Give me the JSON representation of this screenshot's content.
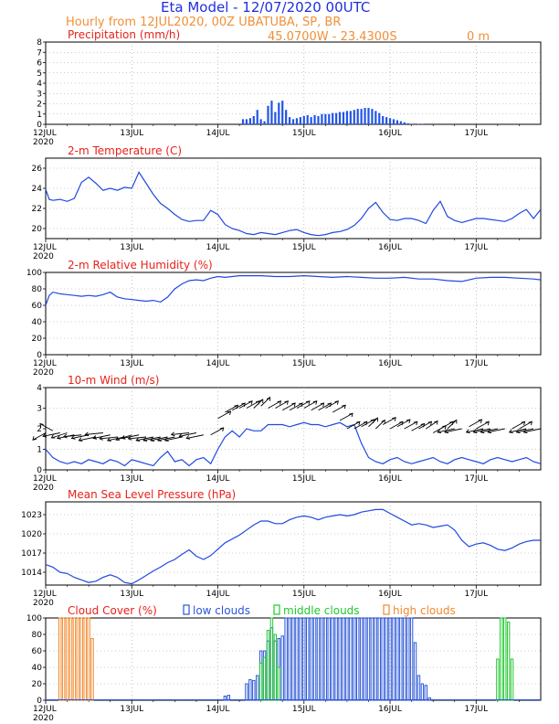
{
  "header": {
    "title": "Eta Model - 12/07/2020 00UTC",
    "subtitle": "Hourly from 12JUL2020, 00Z  UBATUBA, SP, BR",
    "coords": "45.0700W - 23.4300S",
    "elevation": "0  m"
  },
  "xaxis": {
    "labels": [
      "12JUL",
      "13JUL",
      "14JUL",
      "15JUL",
      "16JUL",
      "17JUL"
    ],
    "year": "2020"
  },
  "colors": {
    "title_red": "#e8211a",
    "header_blue": "#1f2ee0",
    "header_orange": "#f09038",
    "line_blue": "#1f49e0",
    "bar_blue": "#2255e8",
    "low_clouds": "#2a56d8",
    "middle_clouds": "#22c830",
    "high_clouds": "#f08a2e"
  },
  "chart_data": [
    {
      "type": "bar",
      "title": "Precipitation (mm/h)",
      "ylim": [
        0,
        8
      ],
      "yticks": [
        "0",
        "1",
        "2",
        "3",
        "4",
        "5",
        "6",
        "7",
        "8"
      ],
      "ytick_values": [
        0,
        1,
        2,
        3,
        4,
        5,
        6,
        7,
        8
      ],
      "hours": [
        55,
        56,
        57,
        58,
        59,
        60,
        61,
        62,
        63,
        64,
        65,
        66,
        67,
        68,
        69,
        70,
        71,
        72,
        73,
        74,
        75,
        76,
        77,
        78,
        79,
        80,
        81,
        82,
        83,
        84,
        85,
        86,
        87,
        88,
        89,
        90,
        91,
        92,
        93,
        94,
        95,
        96,
        97,
        98,
        99,
        100,
        101,
        102,
        104,
        105
      ],
      "values": [
        0.5,
        0.5,
        0.6,
        0.8,
        1.4,
        0.5,
        0.3,
        1.8,
        2.3,
        1.2,
        2.1,
        2.3,
        1.4,
        0.7,
        0.5,
        0.6,
        0.7,
        0.8,
        0.9,
        0.7,
        0.9,
        0.8,
        1.0,
        1.0,
        1.0,
        1.1,
        1.1,
        1.2,
        1.2,
        1.3,
        1.3,
        1.4,
        1.5,
        1.5,
        1.6,
        1.6,
        1.5,
        1.3,
        1.1,
        0.8,
        0.7,
        0.6,
        0.5,
        0.4,
        0.3,
        0.2,
        0.1,
        0.05,
        0.05,
        0.05
      ]
    },
    {
      "type": "line",
      "title": "2-m Temperature (C)",
      "ylim": [
        19,
        27
      ],
      "yticks": [
        "20",
        "22",
        "24",
        "26"
      ],
      "ytick_values": [
        20,
        22,
        24,
        26
      ],
      "hours": [
        0,
        1,
        2,
        4,
        6,
        8,
        10,
        12,
        14,
        16,
        18,
        20,
        22,
        24,
        26,
        28,
        30,
        32,
        34,
        36,
        38,
        40,
        42,
        44,
        46,
        48,
        50,
        52,
        54,
        56,
        58,
        60,
        62,
        64,
        66,
        68,
        70,
        72,
        74,
        76,
        78,
        80,
        82,
        84,
        86,
        88,
        90,
        92,
        94,
        96,
        98,
        100,
        102,
        104,
        106,
        108,
        110,
        112,
        114,
        116,
        118,
        120,
        122,
        124,
        126,
        128,
        130,
        132,
        134,
        136,
        138
      ],
      "values": [
        23.9,
        22.9,
        22.8,
        22.9,
        22.7,
        23.0,
        24.6,
        25.1,
        24.5,
        23.8,
        24.0,
        23.8,
        24.1,
        24.0,
        25.6,
        24.5,
        23.4,
        22.5,
        22.0,
        21.4,
        20.9,
        20.7,
        20.8,
        20.8,
        21.8,
        21.4,
        20.4,
        20.0,
        19.8,
        19.5,
        19.4,
        19.6,
        19.5,
        19.4,
        19.6,
        19.8,
        19.9,
        19.6,
        19.4,
        19.3,
        19.4,
        19.6,
        19.7,
        19.9,
        20.3,
        21.0,
        22.0,
        22.6,
        21.6,
        20.9,
        20.8,
        21.0,
        21.0,
        20.8,
        20.5,
        21.8,
        22.7,
        21.2,
        20.8,
        20.6,
        20.8,
        21.0,
        21.0,
        20.9,
        20.8,
        20.7,
        21.0,
        21.5,
        21.9,
        21.0,
        21.9
      ],
      "values_note": "hourly series over the 5.5 day span"
    },
    {
      "type": "line",
      "title": "2-m Relative Humidity (%)",
      "ylim": [
        0,
        100
      ],
      "yticks": [
        "0",
        "20",
        "40",
        "60",
        "80",
        "100"
      ],
      "ytick_values": [
        0,
        20,
        40,
        60,
        80,
        100
      ],
      "hours": [
        0,
        1,
        2,
        4,
        6,
        8,
        10,
        12,
        14,
        16,
        18,
        20,
        22,
        24,
        26,
        28,
        30,
        32,
        34,
        36,
        38,
        40,
        42,
        44,
        46,
        48,
        50,
        52,
        54,
        56,
        60,
        64,
        68,
        72,
        76,
        80,
        84,
        88,
        92,
        96,
        100,
        104,
        108,
        112,
        116,
        120,
        124,
        128,
        132,
        136,
        138
      ],
      "values": [
        60,
        72,
        76,
        74,
        73,
        72,
        71,
        72,
        71,
        73,
        76,
        70,
        68,
        67,
        66,
        65,
        66,
        64,
        70,
        80,
        86,
        90,
        91,
        90,
        93,
        95,
        94,
        95,
        96,
        96,
        96,
        95,
        95,
        96,
        95,
        94,
        95,
        94,
        93,
        93,
        94,
        92,
        92,
        90,
        89,
        93,
        94,
        94,
        93,
        92,
        91
      ]
    },
    {
      "type": "line",
      "title": "10-m Wind (m/s)",
      "ylim": [
        0,
        4
      ],
      "yticks": [
        "0",
        "1",
        "2",
        "3",
        "4"
      ],
      "ytick_values": [
        0,
        1,
        2,
        3,
        4
      ],
      "hours": [
        0,
        1,
        2,
        4,
        6,
        8,
        10,
        12,
        14,
        16,
        18,
        20,
        22,
        24,
        26,
        28,
        30,
        32,
        34,
        36,
        38,
        40,
        42,
        44,
        46,
        48,
        50,
        52,
        54,
        56,
        58,
        60,
        62,
        64,
        66,
        68,
        70,
        72,
        74,
        76,
        78,
        80,
        82,
        84,
        86,
        88,
        90,
        92,
        94,
        96,
        98,
        100,
        102,
        104,
        106,
        108,
        110,
        112,
        114,
        116,
        118,
        120,
        122,
        124,
        126,
        128,
        130,
        132,
        134,
        136,
        138
      ],
      "values": [
        1.0,
        0.8,
        0.6,
        0.4,
        0.3,
        0.4,
        0.3,
        0.5,
        0.4,
        0.3,
        0.5,
        0.4,
        0.2,
        0.5,
        0.4,
        0.3,
        0.2,
        0.6,
        0.9,
        0.4,
        0.5,
        0.2,
        0.5,
        0.6,
        0.3,
        1.0,
        1.6,
        1.9,
        1.6,
        2.0,
        1.9,
        1.9,
        2.2,
        2.2,
        2.2,
        2.1,
        2.2,
        2.3,
        2.2,
        2.2,
        2.1,
        2.2,
        2.3,
        2.1,
        2.2,
        1.3,
        0.6,
        0.4,
        0.3,
        0.5,
        0.6,
        0.4,
        0.3,
        0.4,
        0.5,
        0.6,
        0.4,
        0.3,
        0.5,
        0.6,
        0.5,
        0.4,
        0.3,
        0.5,
        0.6,
        0.5,
        0.4,
        0.5,
        0.6,
        0.4,
        0.3
      ],
      "barb_hours": [
        0,
        2,
        4,
        6,
        8,
        10,
        12,
        14,
        16,
        18,
        20,
        22,
        24,
        26,
        28,
        30,
        32,
        34,
        36,
        38,
        40,
        42,
        44,
        46,
        48,
        50,
        52,
        54,
        56,
        58,
        60,
        62,
        64,
        66,
        68,
        70,
        72,
        74,
        76,
        78,
        80,
        82,
        84,
        86,
        88,
        90,
        92,
        94,
        96,
        98,
        100,
        102,
        104,
        106,
        108,
        110,
        112,
        114,
        116,
        118,
        120,
        122,
        124,
        126,
        128,
        130,
        132,
        134,
        136,
        138
      ],
      "barb_dir_deg": [
        225,
        135,
        200,
        210,
        200,
        190,
        200,
        200,
        190,
        200,
        190,
        200,
        210,
        200,
        190,
        200,
        200,
        200,
        200,
        200,
        190,
        200,
        200,
        45,
        45,
        45,
        45,
        45,
        45,
        60,
        60,
        45,
        45,
        45,
        45,
        45,
        45,
        45,
        45,
        45,
        45,
        45,
        45,
        45,
        45,
        60,
        60,
        45,
        45,
        45,
        45,
        45,
        45,
        50,
        45,
        45,
        60,
        200,
        200,
        45,
        45,
        200,
        200,
        200,
        200,
        45,
        45,
        200,
        200,
        200
      ],
      "barb_speed": [
        1.8,
        1.9,
        1.8,
        1.8,
        1.7,
        1.7,
        1.7,
        1.6,
        1.8,
        1.7,
        1.6,
        1.6,
        1.7,
        1.7,
        1.6,
        1.6,
        1.6,
        1.6,
        1.6,
        1.6,
        1.8,
        1.8,
        1.7,
        1.7,
        2.5,
        2.8,
        2.9,
        3.0,
        3.0,
        3.0,
        3.1,
        3.0,
        3.0,
        2.9,
        2.9,
        3.0,
        3.0,
        2.9,
        2.9,
        3.0,
        2.8,
        2.4,
        2.0,
        2.0,
        2.1,
        2.1,
        2.0,
        2.2,
        2.0,
        2.1,
        2.0,
        1.9,
        2.0,
        2.0,
        1.8,
        2.0,
        2.0,
        2.0,
        2.0,
        2.1,
        2.0,
        2.0,
        2.0,
        2.0,
        2.0,
        2.0,
        2.0,
        2.0,
        2.0,
        2.0
      ]
    },
    {
      "type": "line",
      "title": "Mean Sea Level Pressure (hPa)",
      "ylim": [
        1012,
        1025
      ],
      "yticks": [
        "1014",
        "1017",
        "1020",
        "1023"
      ],
      "ytick_values": [
        1014,
        1017,
        1020,
        1023
      ],
      "hours": [
        0,
        2,
        4,
        6,
        8,
        10,
        12,
        14,
        16,
        18,
        20,
        22,
        24,
        26,
        28,
        30,
        32,
        34,
        36,
        38,
        40,
        42,
        44,
        46,
        48,
        50,
        52,
        54,
        56,
        58,
        60,
        62,
        64,
        66,
        68,
        70,
        72,
        74,
        76,
        78,
        80,
        82,
        84,
        86,
        88,
        90,
        92,
        94,
        96,
        98,
        100,
        102,
        104,
        106,
        108,
        110,
        112,
        114,
        116,
        118,
        120,
        122,
        124,
        126,
        128,
        130,
        132,
        134,
        136,
        138
      ],
      "values": [
        1015.2,
        1014.8,
        1014.0,
        1013.8,
        1013.2,
        1012.8,
        1012.4,
        1012.6,
        1013.2,
        1013.6,
        1013.2,
        1012.4,
        1012.2,
        1012.8,
        1013.5,
        1014.2,
        1014.8,
        1015.5,
        1016.0,
        1016.8,
        1017.5,
        1016.5,
        1016.0,
        1016.6,
        1017.6,
        1018.6,
        1019.2,
        1019.8,
        1020.6,
        1021.4,
        1022.0,
        1022.0,
        1021.6,
        1021.6,
        1022.2,
        1022.6,
        1022.8,
        1022.6,
        1022.2,
        1022.6,
        1022.8,
        1023.0,
        1022.8,
        1023.0,
        1023.4,
        1023.6,
        1023.8,
        1023.8,
        1023.2,
        1022.6,
        1022.0,
        1021.4,
        1021.6,
        1021.4,
        1021.0,
        1021.2,
        1021.4,
        1020.6,
        1019.0,
        1018.0,
        1018.4,
        1018.6,
        1018.2,
        1017.6,
        1017.4,
        1017.8,
        1018.4,
        1018.8,
        1019.0,
        1019.0
      ]
    },
    {
      "type": "bar",
      "title": "Cloud Cover (%)",
      "legend": [
        "low clouds",
        "middle clouds",
        "high clouds"
      ],
      "ylim": [
        0,
        100
      ],
      "yticks": [
        "0",
        "20",
        "40",
        "60",
        "80",
        "100"
      ],
      "ytick_values": [
        0,
        20,
        40,
        60,
        80,
        100
      ],
      "high_clouds": {
        "hours": [
          4,
          5,
          6,
          7,
          8,
          9,
          10,
          11,
          12,
          13
        ],
        "values": [
          100,
          100,
          100,
          100,
          100,
          100,
          100,
          100,
          100,
          75
        ]
      },
      "low_clouds": {
        "hours": [
          50,
          51,
          56,
          57,
          58,
          59,
          60,
          61,
          62,
          63,
          64,
          65,
          66,
          67,
          68,
          69,
          70,
          71,
          72,
          73,
          74,
          75,
          76,
          77,
          78,
          79,
          80,
          81,
          82,
          83,
          84,
          85,
          86,
          87,
          88,
          89,
          90,
          91,
          92,
          93,
          94,
          95,
          96,
          97,
          98,
          99,
          100,
          101,
          102,
          103,
          104,
          105,
          106,
          107
        ],
        "values": [
          5,
          6,
          20,
          25,
          24,
          30,
          60,
          60,
          72,
          88,
          72,
          75,
          78,
          100,
          100,
          100,
          100,
          100,
          100,
          100,
          100,
          100,
          100,
          100,
          100,
          100,
          100,
          100,
          100,
          100,
          100,
          100,
          100,
          100,
          100,
          100,
          100,
          100,
          100,
          100,
          100,
          100,
          100,
          100,
          100,
          100,
          100,
          100,
          100,
          70,
          30,
          20,
          18,
          3
        ]
      },
      "middle_clouds": {
        "hours": [
          60,
          61,
          62,
          63,
          64,
          65,
          126,
          127,
          128,
          129,
          130
        ],
        "values": [
          45,
          52,
          85,
          100,
          80,
          40,
          50,
          100,
          100,
          95,
          50
        ]
      }
    }
  ]
}
